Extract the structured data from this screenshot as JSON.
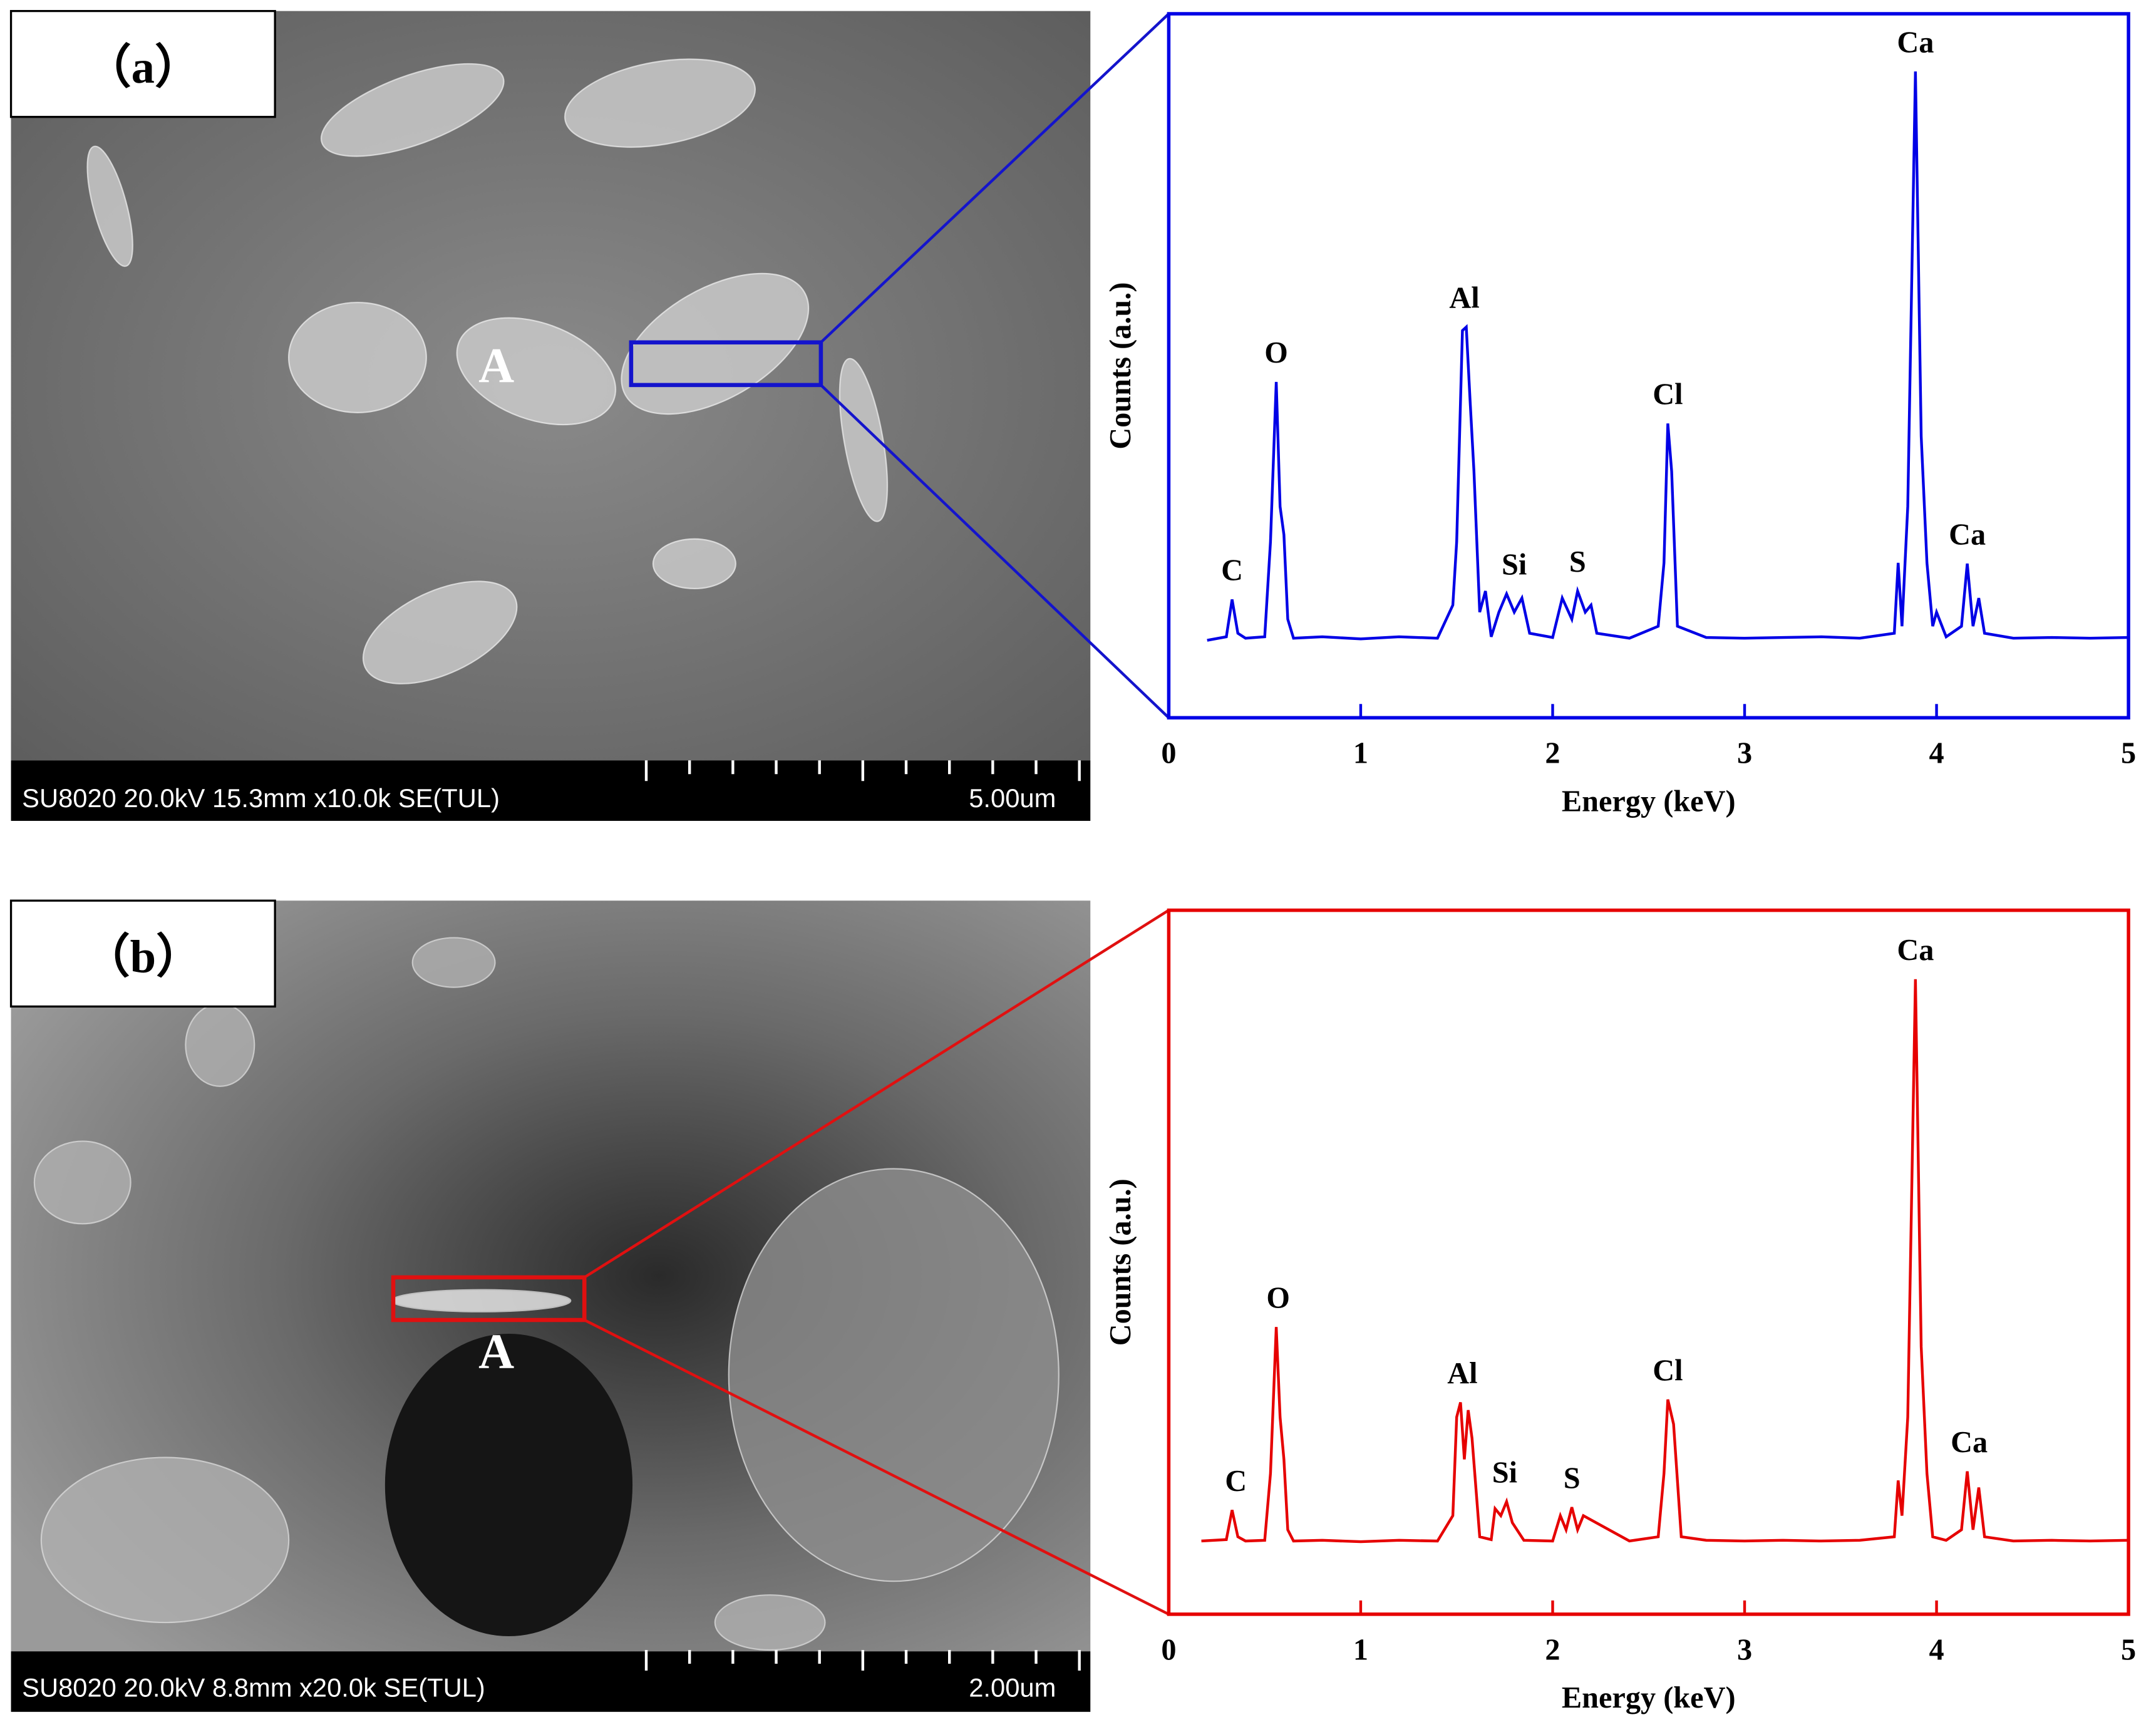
{
  "panels": [
    {
      "label": "（a）",
      "marker": "A",
      "micrograph_info": "SU8020 20.0kV 15.3mm x10.0k SE(TUL)",
      "scale_bar": "5.00um"
    },
    {
      "label": "（b）",
      "marker": "A",
      "micrograph_info": "SU8020 20.0kV 8.8mm x20.0k SE(TUL)",
      "scale_bar": "2.00um"
    }
  ],
  "chart_data": [
    {
      "type": "line",
      "xlabel": "Energy (keV)",
      "ylabel": "Counts (a.u.)",
      "color": "#0000e6",
      "xlim": [
        0,
        5
      ],
      "xticks": [
        0,
        1,
        2,
        3,
        4,
        5
      ],
      "ylim": [
        0,
        100
      ],
      "x": [
        0.2,
        0.3,
        0.33,
        0.36,
        0.4,
        0.5,
        0.53,
        0.56,
        0.58,
        0.6,
        0.62,
        0.65,
        0.8,
        1.0,
        1.2,
        1.4,
        1.48,
        1.5,
        1.53,
        1.55,
        1.57,
        1.59,
        1.62,
        1.65,
        1.68,
        1.72,
        1.76,
        1.8,
        1.84,
        1.88,
        2.0,
        2.05,
        2.1,
        2.13,
        2.17,
        2.2,
        2.23,
        2.4,
        2.55,
        2.58,
        2.6,
        2.62,
        2.65,
        2.8,
        3.0,
        3.2,
        3.4,
        3.6,
        3.78,
        3.8,
        3.82,
        3.85,
        3.89,
        3.92,
        3.95,
        3.98,
        4.0,
        4.05,
        4.13,
        4.16,
        4.19,
        4.22,
        4.25,
        4.4,
        4.6,
        4.8,
        5.0
      ],
      "values": [
        11,
        11.5,
        16.8,
        12,
        11.3,
        11.5,
        25,
        47.7,
        30,
        26,
        14,
        11.3,
        11.5,
        11.2,
        11.5,
        11.3,
        16,
        25,
        55,
        55.5,
        45,
        35,
        15,
        18,
        11.5,
        15,
        17.6,
        15,
        17,
        12,
        11.4,
        17,
        14,
        18,
        15,
        16,
        12,
        11.3,
        13,
        22,
        41.8,
        35,
        13,
        11.4,
        11.3,
        11.4,
        11.5,
        11.3,
        12,
        22,
        13,
        30,
        91.8,
        40,
        22,
        13,
        15,
        11.5,
        13,
        21.9,
        13,
        17,
        12,
        11.3,
        11.4,
        11.3,
        11.4
      ],
      "annotations": [
        {
          "text": "C",
          "x": 0.33,
          "y": 16.8
        },
        {
          "text": "O",
          "x": 0.56,
          "y": 47.7
        },
        {
          "text": "Al",
          "x": 1.54,
          "y": 55.5
        },
        {
          "text": "Si",
          "x": 1.8,
          "y": 17.6
        },
        {
          "text": "S",
          "x": 2.13,
          "y": 18
        },
        {
          "text": "Cl",
          "x": 2.6,
          "y": 41.8
        },
        {
          "text": "Ca",
          "x": 3.89,
          "y": 91.8
        },
        {
          "text": "Ca",
          "x": 4.16,
          "y": 21.9
        }
      ]
    },
    {
      "type": "line",
      "xlabel": "Energy (keV)",
      "ylabel": "Counts (a.u.)",
      "color": "#e60000",
      "xlim": [
        0,
        5
      ],
      "xticks": [
        0,
        1,
        2,
        3,
        4,
        5
      ],
      "ylim": [
        0,
        100
      ],
      "x": [
        0.17,
        0.3,
        0.33,
        0.36,
        0.4,
        0.5,
        0.53,
        0.56,
        0.58,
        0.6,
        0.62,
        0.65,
        0.8,
        1.0,
        1.2,
        1.4,
        1.48,
        1.5,
        1.52,
        1.54,
        1.56,
        1.58,
        1.62,
        1.68,
        1.7,
        1.73,
        1.76,
        1.79,
        1.85,
        2.0,
        2.04,
        2.07,
        2.1,
        2.13,
        2.16,
        2.4,
        2.55,
        2.58,
        2.6,
        2.63,
        2.67,
        2.8,
        3.0,
        3.2,
        3.4,
        3.6,
        3.78,
        3.8,
        3.82,
        3.85,
        3.89,
        3.92,
        3.95,
        3.98,
        4.05,
        4.13,
        4.16,
        4.19,
        4.22,
        4.25,
        4.4,
        4.6,
        4.8,
        5.0
      ],
      "values": [
        10.4,
        10.6,
        14.8,
        11,
        10.4,
        10.5,
        20,
        40.8,
        28,
        22,
        12,
        10.4,
        10.5,
        10.3,
        10.5,
        10.4,
        14,
        28,
        30.1,
        22,
        29,
        25,
        11,
        10.6,
        15,
        14,
        16,
        13,
        10.5,
        10.4,
        14,
        12,
        15.2,
        12,
        14,
        10.4,
        11,
        20,
        30.5,
        27,
        11,
        10.5,
        10.4,
        10.5,
        10.4,
        10.5,
        11,
        19,
        14,
        28,
        90.2,
        38,
        20,
        11,
        10.5,
        12,
        20.3,
        12,
        18,
        11,
        10.4,
        10.5,
        10.4,
        10.5
      ],
      "annotations": [
        {
          "text": "C",
          "x": 0.35,
          "y": 14.8
        },
        {
          "text": "O",
          "x": 0.57,
          "y": 40.8
        },
        {
          "text": "Al",
          "x": 1.53,
          "y": 30.1
        },
        {
          "text": "Si",
          "x": 1.75,
          "y": 16
        },
        {
          "text": "S",
          "x": 2.1,
          "y": 15.2
        },
        {
          "text": "Cl",
          "x": 2.6,
          "y": 30.5
        },
        {
          "text": "Ca",
          "x": 3.89,
          "y": 90.2
        },
        {
          "text": "Ca",
          "x": 4.17,
          "y": 20.3
        }
      ]
    }
  ]
}
